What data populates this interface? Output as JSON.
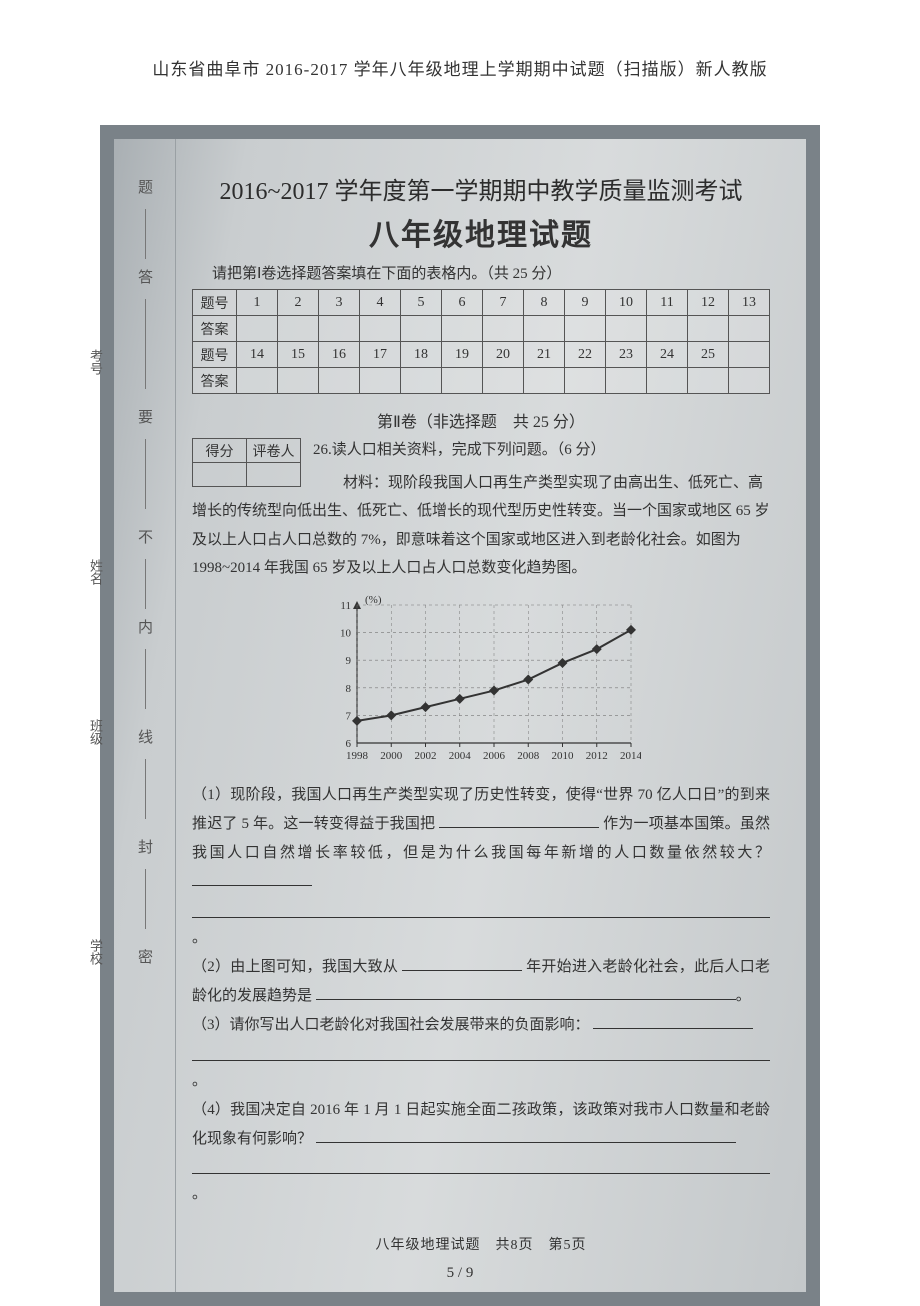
{
  "doc_header": "山东省曲阜市 2016-2017 学年八年级地理上学期期中试题（扫描版）新人教版",
  "exam": {
    "title": "2016~2017 学年度第一学期期中教学质量监测考试",
    "subtitle": "八年级地理试题",
    "instruction": "请把第Ⅰ卷选择题答案填在下面的表格内。（共 25 分）"
  },
  "answer_grid": {
    "row_label": "题号",
    "ans_label": "答案",
    "nums_row1": [
      "1",
      "2",
      "3",
      "4",
      "5",
      "6",
      "7",
      "8",
      "9",
      "10",
      "11",
      "12",
      "13"
    ],
    "nums_row2": [
      "14",
      "15",
      "16",
      "17",
      "18",
      "19",
      "20",
      "21",
      "22",
      "23",
      "24",
      "25",
      ""
    ]
  },
  "section2_title": "第Ⅱ卷（非选择题　共 25 分）",
  "score_box": {
    "left": "得分",
    "right": "评卷人"
  },
  "q26": {
    "heading": "26.读人口相关资料，完成下列问题。（6 分）",
    "material": "材料：现阶段我国人口再生产类型实现了由高出生、低死亡、高增长的传统型向低出生、低死亡、低增长的现代型历史性转变。当一个国家或地区 65 岁及以上人口占人口总数的 7%，即意味着这个国家或地区进入到老龄化社会。如图为 1998~2014 年我国 65 岁及以上人口占人口总数变化趋势图。",
    "p1a": "（1）现阶段，我国人口再生产类型实现了历史性转变，使得“世界 70 亿人口日”的到来推迟了 5 年。这一转变得益于我国把",
    "p1b": "作为一项基本国策。虽然我国人口自然增长率较低，但是为什么我国每年新增的人口数量依然较大？",
    "p2a": "（2）由上图可知，我国大致从",
    "p2b": "年开始进入老龄化社会，此后人口老龄化的发展趋势是",
    "p3": "（3）请你写出人口老龄化对我国社会发展带来的负面影响：",
    "p4": "（4）我国决定自 2016 年 1 月 1 日起实施全面二孩政策，该政策对我市人口数量和老龄化现象有何影响？"
  },
  "chart": {
    "type": "line",
    "x_years": [
      1998,
      2000,
      2002,
      2004,
      2006,
      2008,
      2010,
      2012,
      2014
    ],
    "y_values": [
      6.8,
      7.0,
      7.3,
      7.6,
      7.9,
      8.3,
      8.9,
      9.4,
      10.1
    ],
    "ylim": [
      6,
      11
    ],
    "ytick_step": 1,
    "xlabel_suffix": "（年）",
    "y_unit": "(%)",
    "line_color": "#333333",
    "grid_color": "#777777",
    "bg": "transparent",
    "marker": "diamond",
    "marker_size": 5,
    "line_width": 2,
    "axis_fontsize": 11
  },
  "binding_labels": {
    "top_to_bottom": [
      "题",
      "答",
      "要",
      "不",
      "内",
      "线",
      "封",
      "密"
    ],
    "stubs": [
      "考号",
      "姓名",
      "班级",
      "学校"
    ]
  },
  "footer": "八年级地理试题　共8页　第5页",
  "page_number": "5 / 9",
  "colors": {
    "page_bg": "#ffffff",
    "scan_border": "#7a8288",
    "scan_bg_start": "#a9afb3",
    "scan_bg_end": "#c4c8ca",
    "text": "#333333"
  }
}
